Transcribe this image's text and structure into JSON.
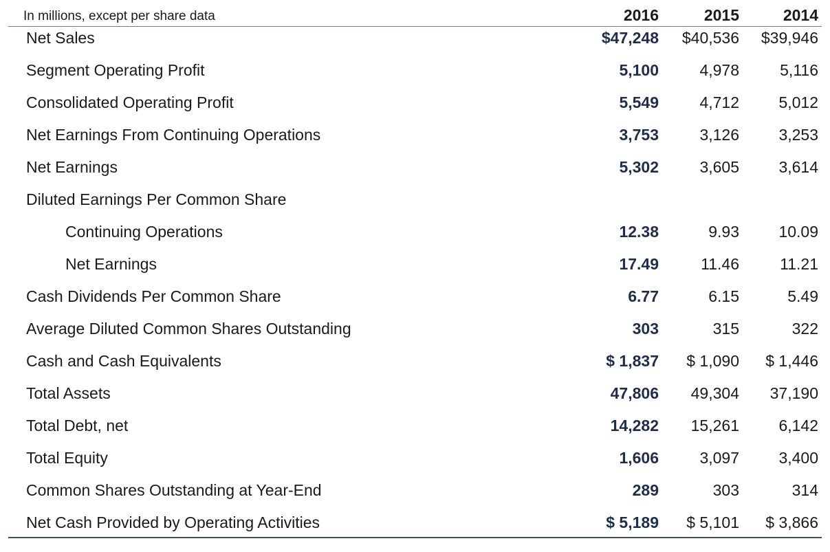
{
  "header": {
    "caption": "In millions, except per share data",
    "years": [
      "2016",
      "2015",
      "2014"
    ]
  },
  "rows": [
    {
      "label": "Net Sales",
      "indent": false,
      "values": [
        "$47,248",
        "$40,536",
        "$39,946"
      ]
    },
    {
      "label": "Segment Operating Profit",
      "indent": false,
      "values": [
        "5,100",
        "4,978",
        "5,116"
      ]
    },
    {
      "label": "Consolidated Operating Profit",
      "indent": false,
      "values": [
        "5,549",
        "4,712",
        "5,012"
      ]
    },
    {
      "label": "Net Earnings From Continuing Operations",
      "indent": false,
      "values": [
        "3,753",
        "3,126",
        "3,253"
      ]
    },
    {
      "label": "Net Earnings",
      "indent": false,
      "values": [
        "5,302",
        "3,605",
        "3,614"
      ]
    },
    {
      "label": "Diluted Earnings Per Common Share",
      "indent": false,
      "values": [
        "",
        "",
        ""
      ]
    },
    {
      "label": "Continuing Operations",
      "indent": true,
      "values": [
        "12.38",
        "9.93",
        "10.09"
      ]
    },
    {
      "label": "Net Earnings",
      "indent": true,
      "values": [
        "17.49",
        "11.46",
        "11.21"
      ]
    },
    {
      "label": "Cash Dividends Per Common Share",
      "indent": false,
      "values": [
        "6.77",
        "6.15",
        "5.49"
      ]
    },
    {
      "label": "Average Diluted Common Shares Outstanding",
      "indent": false,
      "values": [
        "303",
        "315",
        "322"
      ]
    },
    {
      "label": "Cash and Cash Equivalents",
      "indent": false,
      "values": [
        "$ 1,837",
        "$ 1,090",
        "$ 1,446"
      ]
    },
    {
      "label": "Total Assets",
      "indent": false,
      "values": [
        "47,806",
        "49,304",
        "37,190"
      ]
    },
    {
      "label": "Total Debt, net",
      "indent": false,
      "values": [
        "14,282",
        "15,261",
        "6,142"
      ]
    },
    {
      "label": "Total Equity",
      "indent": false,
      "values": [
        "1,606",
        "3,097",
        "3,400"
      ]
    },
    {
      "label": "Common Shares Outstanding at Year-End",
      "indent": false,
      "values": [
        "289",
        "303",
        "314"
      ]
    },
    {
      "label": "Net Cash Provided by Operating Activities",
      "indent": false,
      "values": [
        "$ 5,189",
        "$ 5,101",
        "$ 3,866"
      ]
    }
  ],
  "colors": {
    "current_year_value": "#1f2d4d",
    "header_rule": "#6b7a99",
    "bottom_rule": "#3f4d6e"
  }
}
